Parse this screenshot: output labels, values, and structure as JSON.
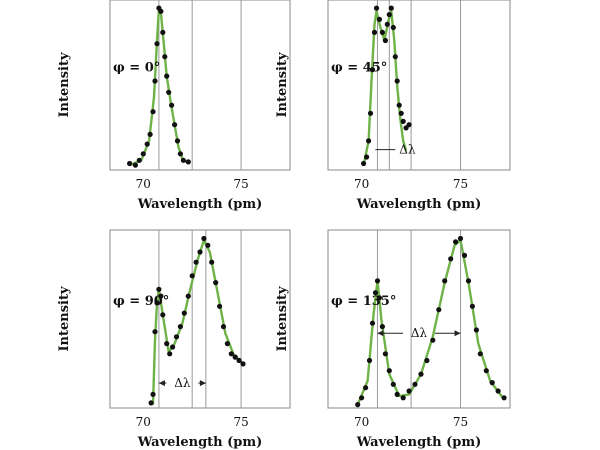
{
  "chart_data": [
    {
      "type": "scatter",
      "phi_label": "φ = 0°",
      "xlabel": "Wavelength (pm)",
      "ylabel": "Intensity",
      "xticks": [
        "70",
        "75"
      ],
      "xlim": [
        68.3,
        77.5
      ],
      "ylim": [
        0,
        1.05
      ],
      "vlines": [
        70.8,
        72.5,
        75.0
      ],
      "delta_lambda": null,
      "points": [
        [
          69.3,
          0.04
        ],
        [
          69.6,
          0.03
        ],
        [
          69.8,
          0.06
        ],
        [
          70.0,
          0.1
        ],
        [
          70.2,
          0.16
        ],
        [
          70.35,
          0.22
        ],
        [
          70.5,
          0.36
        ],
        [
          70.6,
          0.55
        ],
        [
          70.7,
          0.78
        ],
        [
          70.8,
          1.0
        ],
        [
          70.9,
          0.98
        ],
        [
          71.0,
          0.85
        ],
        [
          71.1,
          0.7
        ],
        [
          71.2,
          0.58
        ],
        [
          71.3,
          0.48
        ],
        [
          71.45,
          0.4
        ],
        [
          71.6,
          0.28
        ],
        [
          71.75,
          0.18
        ],
        [
          71.9,
          0.1
        ],
        [
          72.05,
          0.06
        ],
        [
          72.3,
          0.05
        ]
      ],
      "fit": [
        [
          69.3,
          0.03
        ],
        [
          69.9,
          0.06
        ],
        [
          70.3,
          0.18
        ],
        [
          70.55,
          0.45
        ],
        [
          70.7,
          0.8
        ],
        [
          70.8,
          0.99
        ],
        [
          70.9,
          0.97
        ],
        [
          71.05,
          0.78
        ],
        [
          71.2,
          0.58
        ],
        [
          71.4,
          0.42
        ],
        [
          71.6,
          0.28
        ],
        [
          71.8,
          0.14
        ],
        [
          72.0,
          0.07
        ],
        [
          72.3,
          0.04
        ]
      ]
    },
    {
      "type": "scatter",
      "phi_label": "φ = 45°",
      "xlabel": "Wavelength (pm)",
      "ylabel": "Intensity",
      "xticks": [
        "70",
        "75"
      ],
      "xlim": [
        68.3,
        77.5
      ],
      "ylim": [
        0,
        1.05
      ],
      "vlines": [
        70.8,
        71.4,
        72.5,
        75.0
      ],
      "delta_lambda": "Δλ",
      "delta_lambda_x": [
        71.1,
        71.6
      ],
      "points": [
        [
          70.1,
          0.04
        ],
        [
          70.25,
          0.08
        ],
        [
          70.35,
          0.18
        ],
        [
          70.45,
          0.35
        ],
        [
          70.55,
          0.62
        ],
        [
          70.65,
          0.85
        ],
        [
          70.75,
          1.0
        ],
        [
          70.9,
          0.93
        ],
        [
          71.05,
          0.85
        ],
        [
          71.2,
          0.8
        ],
        [
          71.3,
          0.9
        ],
        [
          71.4,
          0.96
        ],
        [
          71.5,
          1.0
        ],
        [
          71.6,
          0.88
        ],
        [
          71.7,
          0.7
        ],
        [
          71.8,
          0.55
        ],
        [
          71.9,
          0.4
        ],
        [
          72.0,
          0.35
        ],
        [
          72.1,
          0.3
        ],
        [
          72.25,
          0.26
        ],
        [
          72.4,
          0.28
        ]
      ],
      "fit": [
        [
          70.1,
          0.03
        ],
        [
          70.35,
          0.18
        ],
        [
          70.5,
          0.55
        ],
        [
          70.65,
          0.9
        ],
        [
          70.75,
          0.98
        ],
        [
          70.95,
          0.88
        ],
        [
          71.15,
          0.8
        ],
        [
          71.35,
          0.92
        ],
        [
          71.5,
          0.98
        ],
        [
          71.65,
          0.8
        ],
        [
          71.8,
          0.52
        ],
        [
          71.95,
          0.32
        ],
        [
          72.1,
          0.18
        ],
        [
          72.25,
          0.12
        ]
      ]
    },
    {
      "type": "scatter",
      "phi_label": "φ = 90°",
      "xlabel": "Wavelength (pm)",
      "ylabel": "Intensity",
      "xticks": [
        "70",
        "75"
      ],
      "xlim": [
        68.3,
        77.5
      ],
      "ylim": [
        0,
        1.05
      ],
      "vlines": [
        70.8,
        72.5,
        73.2,
        75.0
      ],
      "delta_lambda": "Δλ",
      "delta_lambda_x": [
        70.8,
        73.2
      ],
      "points": [
        [
          70.4,
          0.03
        ],
        [
          70.5,
          0.08
        ],
        [
          70.6,
          0.45
        ],
        [
          70.7,
          0.62
        ],
        [
          70.8,
          0.7
        ],
        [
          70.9,
          0.66
        ],
        [
          71.0,
          0.55
        ],
        [
          71.2,
          0.38
        ],
        [
          71.35,
          0.32
        ],
        [
          71.5,
          0.36
        ],
        [
          71.7,
          0.42
        ],
        [
          71.9,
          0.48
        ],
        [
          72.1,
          0.56
        ],
        [
          72.3,
          0.66
        ],
        [
          72.5,
          0.78
        ],
        [
          72.7,
          0.86
        ],
        [
          72.9,
          0.92
        ],
        [
          73.1,
          1.0
        ],
        [
          73.3,
          0.96
        ],
        [
          73.5,
          0.86
        ],
        [
          73.7,
          0.74
        ],
        [
          73.9,
          0.6
        ],
        [
          74.1,
          0.48
        ],
        [
          74.3,
          0.38
        ],
        [
          74.5,
          0.32
        ],
        [
          74.7,
          0.3
        ],
        [
          74.9,
          0.28
        ],
        [
          75.1,
          0.26
        ]
      ],
      "fit": [
        [
          70.5,
          0.02
        ],
        [
          70.6,
          0.4
        ],
        [
          70.7,
          0.62
        ],
        [
          70.8,
          0.7
        ],
        [
          71.0,
          0.55
        ],
        [
          71.3,
          0.33
        ],
        [
          71.6,
          0.38
        ],
        [
          72.0,
          0.5
        ],
        [
          72.4,
          0.7
        ],
        [
          72.8,
          0.88
        ],
        [
          73.1,
          0.99
        ],
        [
          73.4,
          0.92
        ],
        [
          73.8,
          0.68
        ],
        [
          74.2,
          0.44
        ],
        [
          74.6,
          0.32
        ],
        [
          75.1,
          0.26
        ]
      ]
    },
    {
      "type": "scatter",
      "phi_label": "φ = 135°",
      "xlabel": "Wavelength (pm)",
      "ylabel": "Intensity",
      "xticks": [
        "70",
        "75"
      ],
      "xlim": [
        68.3,
        77.5
      ],
      "ylim": [
        0,
        1.05
      ],
      "vlines": [
        70.8,
        72.5,
        75.0
      ],
      "delta_lambda": "Δλ",
      "delta_lambda_x": [
        70.8,
        75.0
      ],
      "points": [
        [
          69.8,
          0.02
        ],
        [
          70.0,
          0.06
        ],
        [
          70.2,
          0.12
        ],
        [
          70.4,
          0.28
        ],
        [
          70.55,
          0.5
        ],
        [
          70.7,
          0.68
        ],
        [
          70.8,
          0.75
        ],
        [
          70.9,
          0.65
        ],
        [
          71.05,
          0.48
        ],
        [
          71.2,
          0.32
        ],
        [
          71.4,
          0.22
        ],
        [
          71.6,
          0.14
        ],
        [
          71.8,
          0.08
        ],
        [
          72.1,
          0.06
        ],
        [
          72.4,
          0.1
        ],
        [
          72.7,
          0.14
        ],
        [
          73.0,
          0.2
        ],
        [
          73.3,
          0.28
        ],
        [
          73.6,
          0.4
        ],
        [
          73.9,
          0.58
        ],
        [
          74.2,
          0.75
        ],
        [
          74.5,
          0.88
        ],
        [
          74.75,
          0.98
        ],
        [
          75.0,
          1.0
        ],
        [
          75.2,
          0.9
        ],
        [
          75.4,
          0.75
        ],
        [
          75.6,
          0.6
        ],
        [
          75.8,
          0.46
        ],
        [
          76.0,
          0.32
        ],
        [
          76.3,
          0.22
        ],
        [
          76.6,
          0.15
        ],
        [
          76.9,
          0.1
        ],
        [
          77.2,
          0.06
        ]
      ],
      "fit": [
        [
          69.8,
          0.02
        ],
        [
          70.3,
          0.16
        ],
        [
          70.6,
          0.55
        ],
        [
          70.8,
          0.75
        ],
        [
          71.0,
          0.52
        ],
        [
          71.4,
          0.2
        ],
        [
          71.9,
          0.07
        ],
        [
          72.4,
          0.08
        ],
        [
          73.0,
          0.2
        ],
        [
          73.6,
          0.42
        ],
        [
          74.2,
          0.74
        ],
        [
          74.7,
          0.96
        ],
        [
          75.0,
          0.99
        ],
        [
          75.4,
          0.74
        ],
        [
          75.9,
          0.38
        ],
        [
          76.5,
          0.16
        ],
        [
          77.2,
          0.05
        ]
      ]
    }
  ],
  "colors": {
    "fit_line": "#6fb348",
    "points": "#111111",
    "frame": "#888888",
    "vline": "#9a9a9a"
  }
}
